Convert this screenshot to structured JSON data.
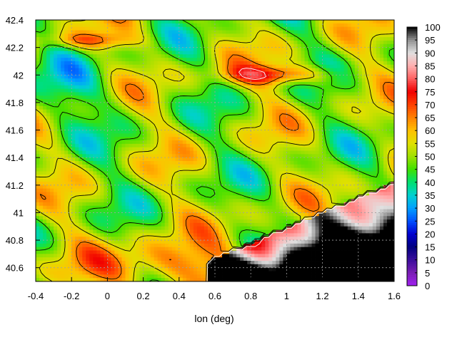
{
  "chart_data": {
    "type": "heatmap",
    "title": "",
    "xlabel": "lon (deg)",
    "ylabel": "",
    "xlim": [
      -0.4,
      1.6
    ],
    "ylim": [
      40.5,
      42.4
    ],
    "grid": true,
    "x_ticks": [
      "-0.4",
      "-0.2",
      "0",
      "0.2",
      "0.4",
      "0.6",
      "0.8",
      "1",
      "1.2",
      "1.4",
      "1.6"
    ],
    "y_ticks": [
      "40.6",
      "40.8",
      "41",
      "41.2",
      "41.4",
      "41.6",
      "41.8",
      "42",
      "42.2",
      "42.4"
    ],
    "colorbar": {
      "range": [
        0,
        100
      ],
      "ticks": [
        "0",
        "5",
        "10",
        "15",
        "20",
        "25",
        "30",
        "35",
        "40",
        "45",
        "50",
        "55",
        "60",
        "65",
        "70",
        "75",
        "80",
        "85",
        "90",
        "95",
        "100"
      ],
      "palette": [
        "#a020f0",
        "#7a1eb4",
        "#3b0e9c",
        "#000080",
        "#0000d0",
        "#0050ff",
        "#00a0ff",
        "#00d0d0",
        "#00e070",
        "#40e000",
        "#a0e000",
        "#e0e000",
        "#ffc000",
        "#ff8000",
        "#ff4000",
        "#f00000",
        "#ff6060",
        "#ffb0b0",
        "#e0e0e0",
        "#909090",
        "#000000"
      ]
    },
    "contour_levels": [
      0,
      5,
      10,
      15,
      20,
      25,
      30,
      35,
      40,
      45,
      50,
      55,
      60,
      65,
      70,
      75,
      80,
      85,
      90,
      95,
      100
    ]
  }
}
